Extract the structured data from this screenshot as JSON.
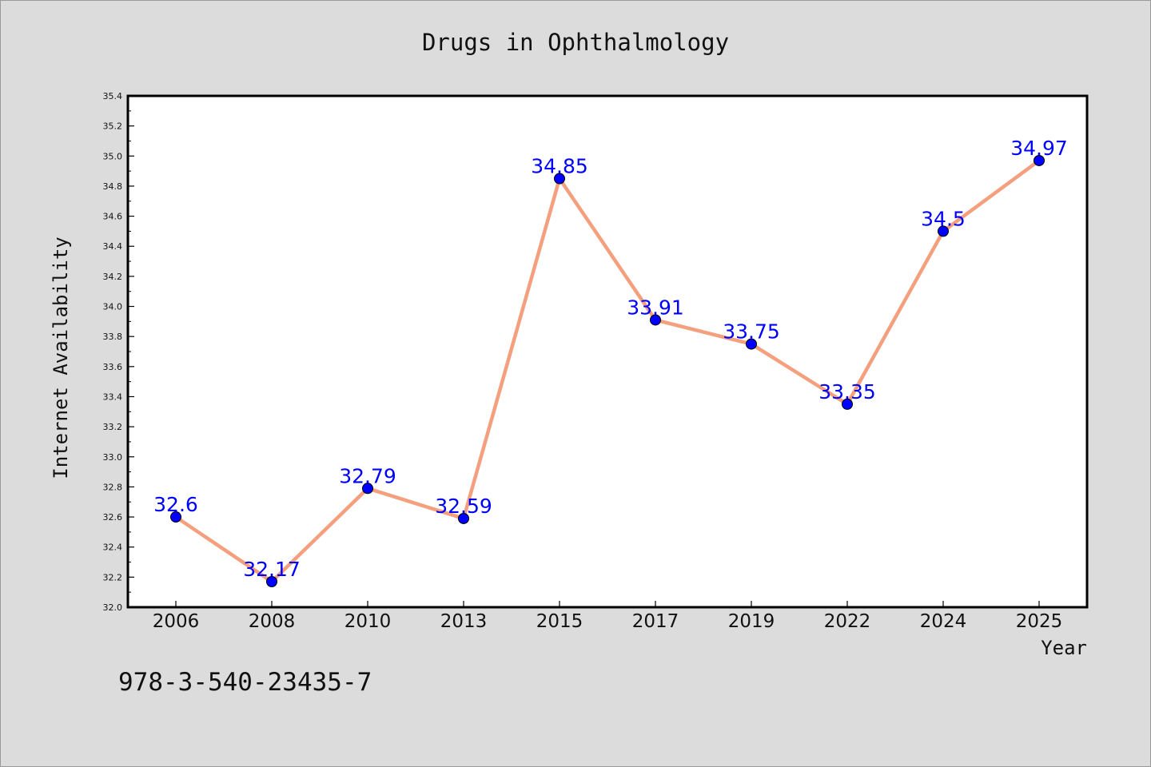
{
  "chart_data": {
    "type": "line",
    "title": "Drugs in Ophthalmology",
    "xlabel": "Year",
    "ylabel": "Internet Availability",
    "categories": [
      "2006",
      "2008",
      "2010",
      "2013",
      "2015",
      "2017",
      "2019",
      "2022",
      "2024",
      "2025"
    ],
    "values": [
      32.6,
      32.17,
      32.79,
      32.59,
      34.85,
      33.91,
      33.75,
      33.35,
      34.5,
      34.97
    ],
    "data_labels": [
      "32.6",
      "32.17",
      "32.79",
      "32.59",
      "34.85",
      "33.91",
      "33.75",
      "33.35",
      "34.5",
      "34.97"
    ],
    "ylim": [
      32.0,
      35.4
    ],
    "yticks": [
      "32.0",
      "32.2",
      "32.4",
      "32.6",
      "32.8",
      "33.0",
      "33.2",
      "33.4",
      "33.6",
      "33.8",
      "34.0",
      "34.2",
      "34.4",
      "34.6",
      "34.8",
      "35.0",
      "35.2",
      "35.4"
    ],
    "grid": false,
    "line_color": "#f4a07e",
    "marker_color": "#0000ff",
    "label_color": "#0000ff"
  },
  "footnote": "978-3-540-23435-7"
}
